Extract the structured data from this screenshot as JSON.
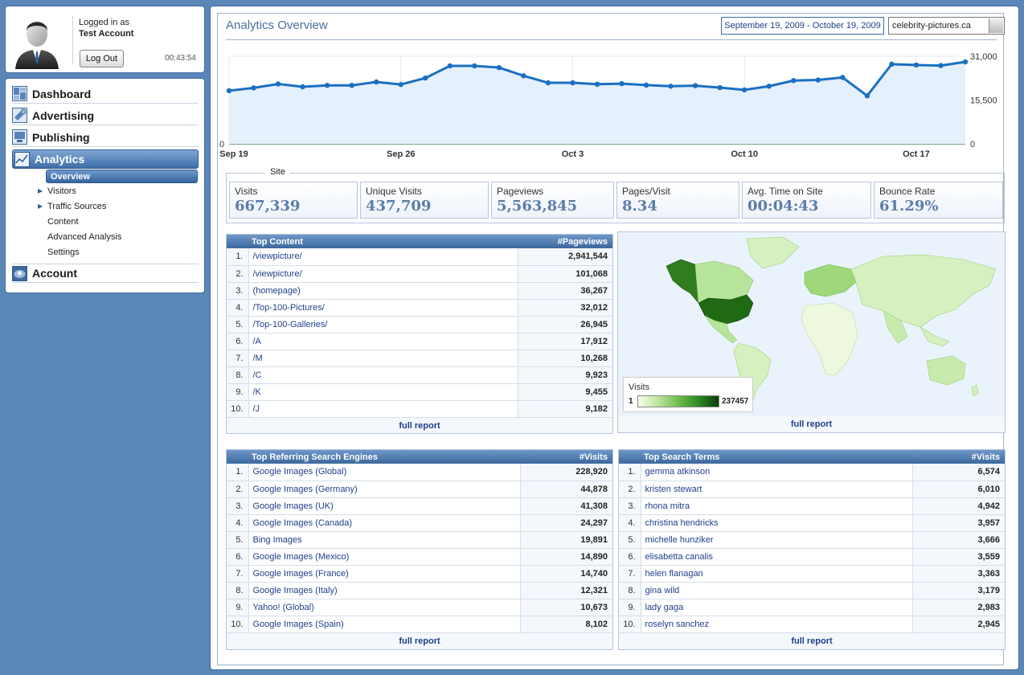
{
  "user": {
    "logged_in_label": "Logged in as",
    "account_name": "Test Account",
    "logout_label": "Log Out",
    "session_time": "00:43:54"
  },
  "nav": {
    "main": [
      {
        "label": "Dashboard",
        "icon": "dashboard-icon"
      },
      {
        "label": "Advertising",
        "icon": "advertising-icon"
      },
      {
        "label": "Publishing",
        "icon": "publishing-icon"
      },
      {
        "label": "Analytics",
        "icon": "analytics-icon",
        "active": true
      },
      {
        "label": "Account",
        "icon": "account-icon"
      }
    ],
    "analytics_sub": [
      {
        "label": "Overview",
        "active": true
      },
      {
        "label": "Visitors",
        "expandable": true
      },
      {
        "label": "Traffic Sources",
        "expandable": true
      },
      {
        "label": "Content"
      },
      {
        "label": "Advanced Analysis"
      },
      {
        "label": "Settings"
      }
    ]
  },
  "header": {
    "title": "Analytics Overview",
    "date_range": "September 19, 2009 - October 19, 2009",
    "site": "celebrity-pictures.ca"
  },
  "chart_data": {
    "type": "area",
    "title": "",
    "x": [
      "Sep 19",
      "Sep 20",
      "Sep 21",
      "Sep 22",
      "Sep 23",
      "Sep 24",
      "Sep 25",
      "Sep 26",
      "Sep 27",
      "Sep 28",
      "Sep 29",
      "Sep 30",
      "Oct 1",
      "Oct 2",
      "Oct 3",
      "Oct 4",
      "Oct 5",
      "Oct 6",
      "Oct 7",
      "Oct 8",
      "Oct 9",
      "Oct 10",
      "Oct 11",
      "Oct 12",
      "Oct 13",
      "Oct 14",
      "Oct 15",
      "Oct 16",
      "Oct 17",
      "Oct 18",
      "Oct 19"
    ],
    "x_ticks": [
      "Sep 19",
      "Sep 26",
      "Oct 3",
      "Oct 10",
      "Oct 17"
    ],
    "y_ticks": [
      "0",
      "15,500",
      "31,000"
    ],
    "ylim": [
      0,
      31000
    ],
    "series": [
      {
        "values": [
          18800,
          19800,
          21200,
          20200,
          20700,
          20700,
          21900,
          21000,
          23300,
          27600,
          27600,
          27000,
          24100,
          21600,
          21600,
          21100,
          21300,
          20800,
          20400,
          20600,
          19900,
          19100,
          20400,
          22400,
          22600,
          23500,
          17000,
          28200,
          27900,
          27700,
          29000
        ]
      }
    ],
    "grid": true,
    "color": "#1b6fc2",
    "fill": "#e4f0fb"
  },
  "site_metrics": {
    "label": "Site",
    "items": [
      {
        "label": "Visits",
        "value": "667,339"
      },
      {
        "label": "Unique Visits",
        "value": "437,709"
      },
      {
        "label": "Pageviews",
        "value": "5,563,845"
      },
      {
        "label": "Pages/Visit",
        "value": "8.34"
      },
      {
        "label": "Avg. Time on Site",
        "value": "00:04:43"
      },
      {
        "label": "Bounce Rate",
        "value": "61.29%"
      }
    ]
  },
  "top_content": {
    "title": "Top Content",
    "value_header": "#Pageviews",
    "full_report": "full report",
    "rows": [
      {
        "rank": "1.",
        "label": "/viewpicture/",
        "value": "2,941,544"
      },
      {
        "rank": "2.",
        "label": "/viewpicture/",
        "value": "101,068"
      },
      {
        "rank": "3.",
        "label": "(homepage)",
        "value": "36,267"
      },
      {
        "rank": "4.",
        "label": "/Top-100-Pictures/",
        "value": "32,012"
      },
      {
        "rank": "5.",
        "label": "/Top-100-Galleries/",
        "value": "26,945"
      },
      {
        "rank": "6.",
        "label": "/A",
        "value": "17,912"
      },
      {
        "rank": "7.",
        "label": "/M",
        "value": "10,268"
      },
      {
        "rank": "8.",
        "label": "/C",
        "value": "9,923"
      },
      {
        "rank": "9.",
        "label": "/K",
        "value": "9,455"
      },
      {
        "rank": "10.",
        "label": "/J",
        "value": "9,182"
      }
    ]
  },
  "map": {
    "legend_title": "Visits",
    "legend_min": "1",
    "legend_max": "237457",
    "full_report": "full report"
  },
  "top_search_engines": {
    "title": "Top Referring Search Engines",
    "value_header": "#Visits",
    "full_report": "full report",
    "rows": [
      {
        "rank": "1.",
        "label": "Google Images (Global)",
        "value": "228,920"
      },
      {
        "rank": "2.",
        "label": "Google Images (Germany)",
        "value": "44,878"
      },
      {
        "rank": "3.",
        "label": "Google Images (UK)",
        "value": "41,308"
      },
      {
        "rank": "4.",
        "label": "Google Images (Canada)",
        "value": "24,297"
      },
      {
        "rank": "5.",
        "label": "Bing Images",
        "value": "19,891"
      },
      {
        "rank": "6.",
        "label": "Google Images (Mexico)",
        "value": "14,890"
      },
      {
        "rank": "7.",
        "label": "Google Images (France)",
        "value": "14,740"
      },
      {
        "rank": "8.",
        "label": "Google Images (Italy)",
        "value": "12,321"
      },
      {
        "rank": "9.",
        "label": "Yahoo! (Global)",
        "value": "10,673"
      },
      {
        "rank": "10.",
        "label": "Google Images (Spain)",
        "value": "8,102"
      }
    ]
  },
  "top_search_terms": {
    "title": "Top Search Terms",
    "value_header": "#Visits",
    "full_report": "full report",
    "rows": [
      {
        "rank": "1.",
        "label": "gemma atkinson",
        "value": "6,574"
      },
      {
        "rank": "2.",
        "label": "kristen stewart",
        "value": "6,010"
      },
      {
        "rank": "3.",
        "label": "rhona mitra",
        "value": "4,942"
      },
      {
        "rank": "4.",
        "label": "christina hendricks",
        "value": "3,957"
      },
      {
        "rank": "5.",
        "label": "michelle hunziker",
        "value": "3,666"
      },
      {
        "rank": "6.",
        "label": "elisabetta canalis",
        "value": "3,559"
      },
      {
        "rank": "7.",
        "label": "helen flanagan",
        "value": "3,363"
      },
      {
        "rank": "8.",
        "label": "gina wild",
        "value": "3,179"
      },
      {
        "rank": "9.",
        "label": "lady gaga",
        "value": "2,983"
      },
      {
        "rank": "10.",
        "label": "roselyn sanchez",
        "value": "2,945"
      }
    ]
  }
}
